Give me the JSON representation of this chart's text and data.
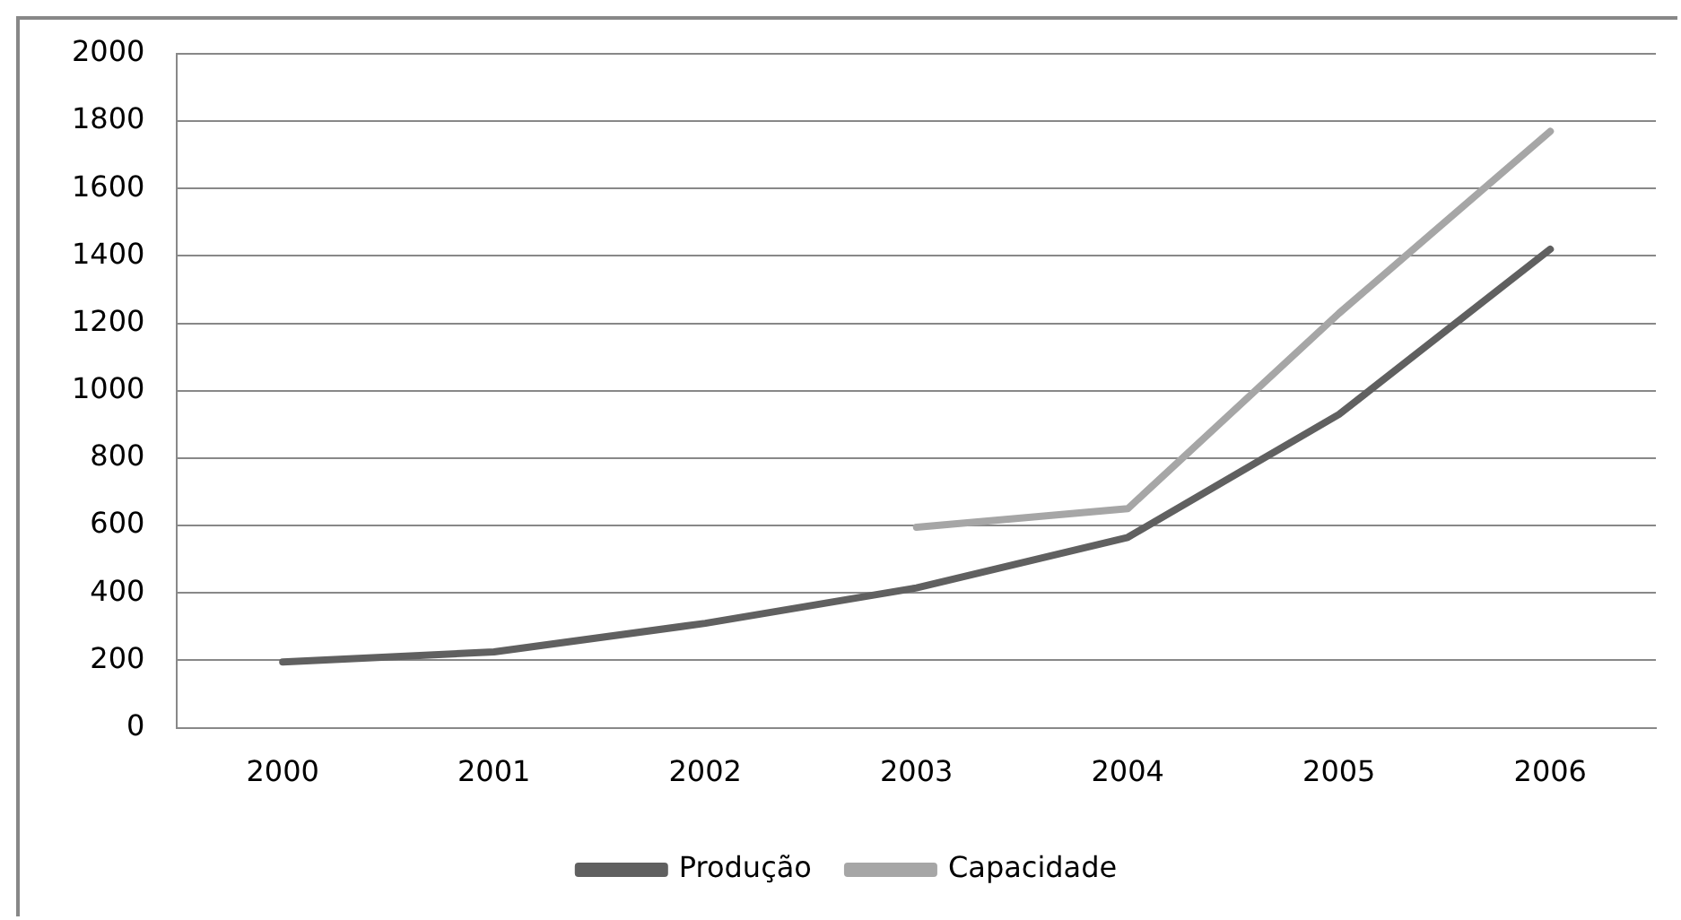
{
  "chart_data": {
    "type": "line",
    "categories": [
      "2000",
      "2001",
      "2002",
      "2003",
      "2004",
      "2005",
      "2006"
    ],
    "series": [
      {
        "name": "Produção",
        "color": "#606060",
        "values": [
          195,
          225,
          310,
          415,
          565,
          930,
          1420
        ]
      },
      {
        "name": "Capacidade",
        "color": "#a6a6a6",
        "values": [
          null,
          null,
          null,
          595,
          650,
          1230,
          1770
        ]
      }
    ],
    "ylim": [
      0,
      2000
    ],
    "yticks": [
      0,
      200,
      400,
      600,
      800,
      1000,
      1200,
      1400,
      1600,
      1800,
      2000
    ],
    "grid": "y",
    "legend": "bottom",
    "marker": "none",
    "line_style": "solid"
  }
}
